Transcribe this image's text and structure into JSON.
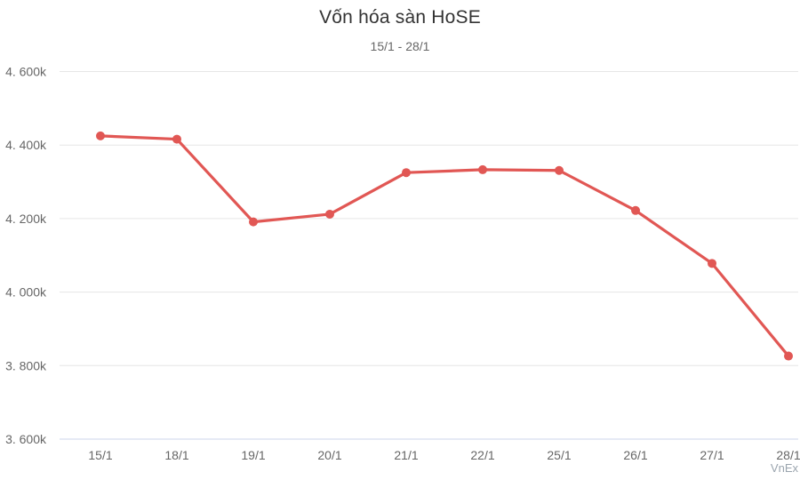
{
  "header": {
    "title": "Vốn hóa sàn HoSE",
    "subtitle": "15/1 - 28/1"
  },
  "watermark": "VnEx",
  "colors": {
    "line": "#e15754",
    "marker": "#e15754",
    "grid": "#e6e6e6",
    "axis_line": "#ccd6eb",
    "label": "#666666",
    "title": "#333333",
    "subtitle": "#666666",
    "watermark": "#9aa4ae"
  },
  "chart_data": {
    "type": "line",
    "title": "Vốn hóa sàn HoSE",
    "subtitle": "15/1 - 28/1",
    "categories": [
      "15/1",
      "18/1",
      "19/1",
      "20/1",
      "21/1",
      "22/1",
      "25/1",
      "26/1",
      "27/1",
      "28/1"
    ],
    "series": [
      {
        "name": "Vốn hóa sàn HoSE",
        "values": [
          4425,
          4416,
          4191,
          4212,
          4325,
          4333,
          4331,
          4222,
          4078,
          3826
        ]
      }
    ],
    "xlabel": "",
    "ylabel": "",
    "ylim": [
      3600,
      4600
    ],
    "y_tick_step": 200,
    "y_tick_labels": [
      "3. 600k",
      "3. 800k",
      "4. 000k",
      "4. 200k",
      "4. 400k",
      "4. 600k"
    ],
    "grid": true,
    "legend": false,
    "unit": "k"
  }
}
